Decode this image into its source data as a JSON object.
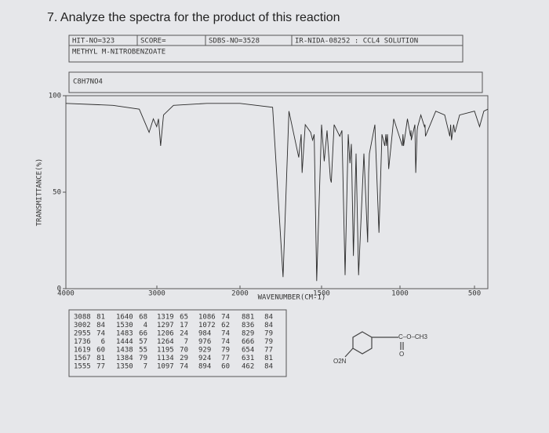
{
  "question": "7. Analyze the spectra for the product of this reaction",
  "header": {
    "hit": "HIT-NO=323",
    "score": "SCORE=",
    "sdbs": "SDBS-NO=3528",
    "method": "IR-NIDA-08252 : CCL4 SOLUTION",
    "compound": "METHYL M-NITROBENZOATE",
    "formula": "C8H7NO4"
  },
  "chart_data": {
    "type": "line",
    "xlabel": "WAVENUMBER(CM-1)",
    "ylabel": "TRANSMITTANCE(%)",
    "xlim": [
      4000,
      400
    ],
    "xticks": [
      4000,
      3000,
      2000,
      1500,
      1000,
      500
    ],
    "ylim": [
      0,
      100
    ],
    "yticks": [
      0,
      50,
      100
    ],
    "series": [
      {
        "color": "#2a2a2a",
        "x": [
          4000,
          3500,
          3200,
          3088,
          3040,
          3002,
          2980,
          2955,
          2920,
          2800,
          2400,
          2000,
          1800,
          1736,
          1700,
          1640,
          1625,
          1619,
          1600,
          1567,
          1555,
          1545,
          1530,
          1500,
          1483,
          1465,
          1444,
          1438,
          1420,
          1384,
          1370,
          1350,
          1330,
          1319,
          1310,
          1297,
          1280,
          1264,
          1230,
          1206,
          1200,
          1195,
          1160,
          1134,
          1115,
          1097,
          1090,
          1086,
          1080,
          1072,
          1040,
          984,
          980,
          976,
          950,
          929,
          926,
          924,
          900,
          894,
          885,
          881,
          860,
          836,
          832,
          829,
          760,
          700,
          666,
          660,
          654,
          640,
          631,
          600,
          500,
          462,
          430,
          400
        ],
        "values": [
          96,
          95,
          93,
          81,
          88,
          84,
          88,
          74,
          90,
          95,
          96,
          96,
          94,
          6,
          92,
          68,
          80,
          60,
          85,
          81,
          77,
          80,
          4,
          85,
          66,
          82,
          57,
          55,
          85,
          79,
          82,
          7,
          80,
          65,
          75,
          17,
          70,
          7,
          70,
          24,
          60,
          70,
          85,
          29,
          80,
          74,
          80,
          74,
          80,
          62,
          88,
          74,
          80,
          74,
          88,
          79,
          82,
          77,
          85,
          60,
          82,
          84,
          90,
          84,
          85,
          79,
          92,
          90,
          79,
          85,
          77,
          85,
          81,
          90,
          92,
          84,
          92,
          93
        ]
      }
    ]
  },
  "peak_table": {
    "rows": [
      [
        [
          3088,
          81
        ],
        [
          1640,
          68
        ],
        [
          1319,
          65
        ],
        [
          1086,
          74
        ],
        [
          881,
          84
        ]
      ],
      [
        [
          3002,
          84
        ],
        [
          1530,
          4
        ],
        [
          1297,
          17
        ],
        [
          1072,
          62
        ],
        [
          836,
          84
        ]
      ],
      [
        [
          2955,
          74
        ],
        [
          1483,
          66
        ],
        [
          1206,
          24
        ],
        [
          984,
          74
        ],
        [
          829,
          79
        ]
      ],
      [
        [
          1736,
          6
        ],
        [
          1444,
          57
        ],
        [
          1264,
          7
        ],
        [
          976,
          74
        ],
        [
          666,
          79
        ]
      ],
      [
        [
          1619,
          60
        ],
        [
          1438,
          55
        ],
        [
          1195,
          70
        ],
        [
          929,
          79
        ],
        [
          654,
          77
        ]
      ],
      [
        [
          1567,
          81
        ],
        [
          1384,
          79
        ],
        [
          1134,
          29
        ],
        [
          924,
          77
        ],
        [
          631,
          81
        ]
      ],
      [
        [
          1555,
          77
        ],
        [
          1350,
          7
        ],
        [
          1097,
          74
        ],
        [
          894,
          60
        ],
        [
          462,
          84
        ]
      ]
    ]
  },
  "structure": {
    "ester": "C–O–CH3",
    "carbonyl": "O",
    "nitro": "O2N"
  }
}
